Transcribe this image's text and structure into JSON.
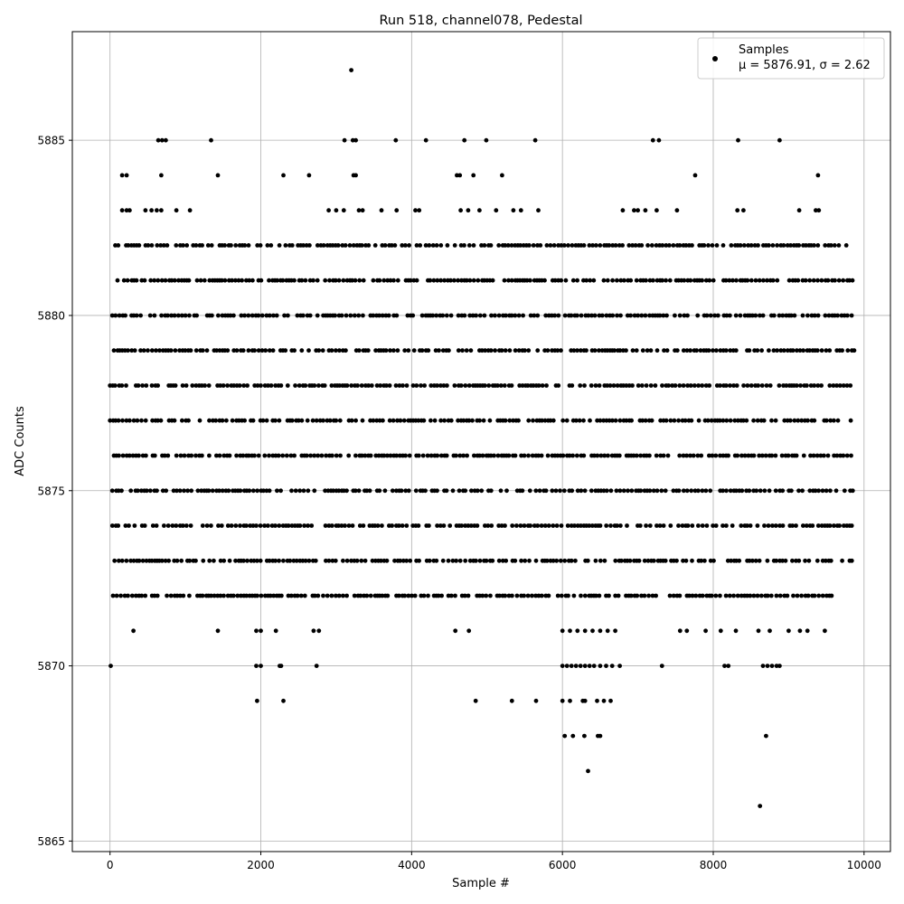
{
  "chart_data": {
    "type": "scatter",
    "title": "Run 518, channel078, Pedestal",
    "xlabel": "Sample #",
    "ylabel": "ADC Counts",
    "xlim": [
      -500,
      10350
    ],
    "ylim": [
      5864.7,
      5888.1
    ],
    "xticks": [
      0,
      2000,
      4000,
      6000,
      8000,
      10000
    ],
    "xtick_labels": [
      "0",
      "2000",
      "4000",
      "6000",
      "8000",
      "10000"
    ],
    "yticks": [
      5865,
      5870,
      5875,
      5880,
      5885
    ],
    "ytick_labels": [
      "5865",
      "5870",
      "5875",
      "5880",
      "5885"
    ],
    "grid": true,
    "legend": {
      "placement": "top-right",
      "entries": [
        {
          "label": "Samples",
          "label_line2": "μ = 5876.91, σ = 2.62"
        }
      ]
    },
    "marker_color": "#000000",
    "n_samples": 10000,
    "stats": {
      "mu": 5876.91,
      "sigma": 2.62
    },
    "series": [
      {
        "name": "Samples",
        "ranges": [
          {
            "y": 5877,
            "x_start": 0,
            "x_end": 9870
          },
          {
            "y": 5876,
            "x_start": 0,
            "x_end": 9870
          },
          {
            "y": 5878,
            "x_start": 0,
            "x_end": 9870
          },
          {
            "y": 5879,
            "x_start": 0,
            "x_end": 9870
          },
          {
            "y": 5875,
            "x_start": 30,
            "x_end": 9870
          },
          {
            "y": 5874,
            "x_start": 0,
            "x_end": 9870
          },
          {
            "y": 5873,
            "x_start": 60,
            "x_end": 9870
          },
          {
            "y": 5880,
            "x_start": 0,
            "x_end": 9870
          },
          {
            "y": 5881,
            "x_start": 100,
            "x_end": 9870
          },
          {
            "y": 5872,
            "x_start": 40,
            "x_end": 9620
          },
          {
            "y": 5882,
            "x_start": 40,
            "x_end": 9780
          }
        ],
        "points": [
          {
            "x": 10,
            "y": 5870
          },
          {
            "x": 310,
            "y": 5871
          },
          {
            "x": 1430,
            "y": 5871
          },
          {
            "x": 1940,
            "y": 5871
          },
          {
            "x": 2000,
            "y": 5871
          },
          {
            "x": 2200,
            "y": 5871
          },
          {
            "x": 2700,
            "y": 5871
          },
          {
            "x": 2770,
            "y": 5871
          },
          {
            "x": 4580,
            "y": 5871
          },
          {
            "x": 4760,
            "y": 5871
          },
          {
            "x": 6000,
            "y": 5871
          },
          {
            "x": 6100,
            "y": 5871
          },
          {
            "x": 6200,
            "y": 5871
          },
          {
            "x": 6300,
            "y": 5871
          },
          {
            "x": 6400,
            "y": 5871
          },
          {
            "x": 6500,
            "y": 5871
          },
          {
            "x": 6600,
            "y": 5871
          },
          {
            "x": 6700,
            "y": 5871
          },
          {
            "x": 7560,
            "y": 5871
          },
          {
            "x": 7650,
            "y": 5871
          },
          {
            "x": 7900,
            "y": 5871
          },
          {
            "x": 8100,
            "y": 5871
          },
          {
            "x": 8300,
            "y": 5871
          },
          {
            "x": 8600,
            "y": 5871
          },
          {
            "x": 8750,
            "y": 5871
          },
          {
            "x": 9000,
            "y": 5871
          },
          {
            "x": 9150,
            "y": 5871
          },
          {
            "x": 9250,
            "y": 5871
          },
          {
            "x": 9480,
            "y": 5871
          },
          {
            "x": 1940,
            "y": 5870
          },
          {
            "x": 2000,
            "y": 5870
          },
          {
            "x": 2250,
            "y": 5870
          },
          {
            "x": 2270,
            "y": 5870
          },
          {
            "x": 2740,
            "y": 5870
          },
          {
            "x": 6000,
            "y": 5870
          },
          {
            "x": 6060,
            "y": 5870
          },
          {
            "x": 6120,
            "y": 5870
          },
          {
            "x": 6180,
            "y": 5870
          },
          {
            "x": 6240,
            "y": 5870
          },
          {
            "x": 6300,
            "y": 5870
          },
          {
            "x": 6360,
            "y": 5870
          },
          {
            "x": 6420,
            "y": 5870
          },
          {
            "x": 6500,
            "y": 5870
          },
          {
            "x": 6580,
            "y": 5870
          },
          {
            "x": 6660,
            "y": 5870
          },
          {
            "x": 6760,
            "y": 5870
          },
          {
            "x": 7320,
            "y": 5870
          },
          {
            "x": 8150,
            "y": 5870
          },
          {
            "x": 8200,
            "y": 5870
          },
          {
            "x": 8660,
            "y": 5870
          },
          {
            "x": 8720,
            "y": 5870
          },
          {
            "x": 8780,
            "y": 5870
          },
          {
            "x": 8840,
            "y": 5870
          },
          {
            "x": 8880,
            "y": 5870
          },
          {
            "x": 1950,
            "y": 5869
          },
          {
            "x": 2300,
            "y": 5869
          },
          {
            "x": 4850,
            "y": 5869
          },
          {
            "x": 5330,
            "y": 5869
          },
          {
            "x": 5650,
            "y": 5869
          },
          {
            "x": 6000,
            "y": 5869
          },
          {
            "x": 6100,
            "y": 5869
          },
          {
            "x": 6270,
            "y": 5869
          },
          {
            "x": 6300,
            "y": 5869
          },
          {
            "x": 6460,
            "y": 5869
          },
          {
            "x": 6550,
            "y": 5869
          },
          {
            "x": 6640,
            "y": 5869
          },
          {
            "x": 6030,
            "y": 5868
          },
          {
            "x": 6140,
            "y": 5868
          },
          {
            "x": 6290,
            "y": 5868
          },
          {
            "x": 6470,
            "y": 5868
          },
          {
            "x": 6500,
            "y": 5868
          },
          {
            "x": 8700,
            "y": 5868
          },
          {
            "x": 6340,
            "y": 5867
          },
          {
            "x": 8620,
            "y": 5866
          },
          {
            "x": 160,
            "y": 5883
          },
          {
            "x": 220,
            "y": 5883
          },
          {
            "x": 260,
            "y": 5883
          },
          {
            "x": 470,
            "y": 5883
          },
          {
            "x": 550,
            "y": 5883
          },
          {
            "x": 620,
            "y": 5883
          },
          {
            "x": 680,
            "y": 5883
          },
          {
            "x": 880,
            "y": 5883
          },
          {
            "x": 1060,
            "y": 5883
          },
          {
            "x": 2900,
            "y": 5883
          },
          {
            "x": 3000,
            "y": 5883
          },
          {
            "x": 3100,
            "y": 5883
          },
          {
            "x": 3300,
            "y": 5883
          },
          {
            "x": 3350,
            "y": 5883
          },
          {
            "x": 3600,
            "y": 5883
          },
          {
            "x": 3800,
            "y": 5883
          },
          {
            "x": 4050,
            "y": 5883
          },
          {
            "x": 4100,
            "y": 5883
          },
          {
            "x": 4650,
            "y": 5883
          },
          {
            "x": 4750,
            "y": 5883
          },
          {
            "x": 4900,
            "y": 5883
          },
          {
            "x": 5120,
            "y": 5883
          },
          {
            "x": 5350,
            "y": 5883
          },
          {
            "x": 5450,
            "y": 5883
          },
          {
            "x": 5680,
            "y": 5883
          },
          {
            "x": 6800,
            "y": 5883
          },
          {
            "x": 6950,
            "y": 5883
          },
          {
            "x": 7000,
            "y": 5883
          },
          {
            "x": 7100,
            "y": 5883
          },
          {
            "x": 7250,
            "y": 5883
          },
          {
            "x": 7520,
            "y": 5883
          },
          {
            "x": 8320,
            "y": 5883
          },
          {
            "x": 8400,
            "y": 5883
          },
          {
            "x": 9140,
            "y": 5883
          },
          {
            "x": 9360,
            "y": 5883
          },
          {
            "x": 9400,
            "y": 5883
          },
          {
            "x": 160,
            "y": 5884
          },
          {
            "x": 220,
            "y": 5884
          },
          {
            "x": 680,
            "y": 5884
          },
          {
            "x": 1430,
            "y": 5884
          },
          {
            "x": 2300,
            "y": 5884
          },
          {
            "x": 2640,
            "y": 5884
          },
          {
            "x": 3230,
            "y": 5884
          },
          {
            "x": 3260,
            "y": 5884
          },
          {
            "x": 4600,
            "y": 5884
          },
          {
            "x": 4640,
            "y": 5884
          },
          {
            "x": 4820,
            "y": 5884
          },
          {
            "x": 5200,
            "y": 5884
          },
          {
            "x": 7760,
            "y": 5884
          },
          {
            "x": 9390,
            "y": 5884
          },
          {
            "x": 640,
            "y": 5885
          },
          {
            "x": 690,
            "y": 5885
          },
          {
            "x": 740,
            "y": 5885
          },
          {
            "x": 1340,
            "y": 5885
          },
          {
            "x": 3110,
            "y": 5885
          },
          {
            "x": 3220,
            "y": 5885
          },
          {
            "x": 3260,
            "y": 5885
          },
          {
            "x": 3790,
            "y": 5885
          },
          {
            "x": 4190,
            "y": 5885
          },
          {
            "x": 4700,
            "y": 5885
          },
          {
            "x": 4990,
            "y": 5885
          },
          {
            "x": 5640,
            "y": 5885
          },
          {
            "x": 7200,
            "y": 5885
          },
          {
            "x": 7280,
            "y": 5885
          },
          {
            "x": 8330,
            "y": 5885
          },
          {
            "x": 8880,
            "y": 5885
          },
          {
            "x": 3200,
            "y": 5887
          }
        ]
      }
    ]
  }
}
